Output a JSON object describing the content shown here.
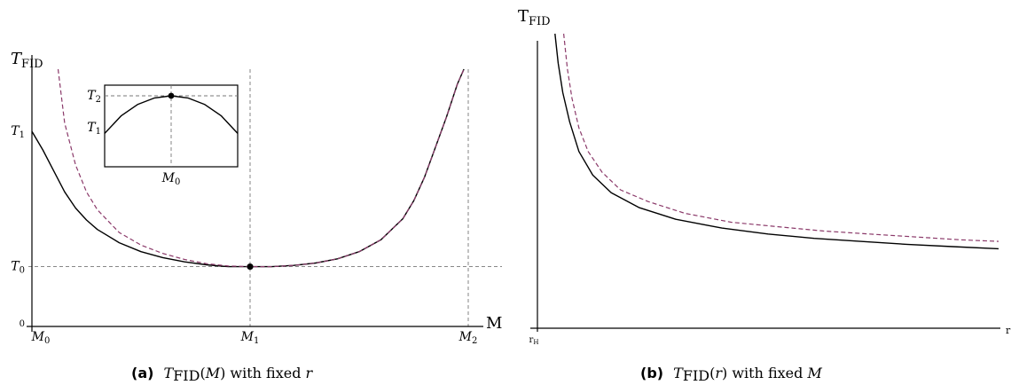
{
  "chart_data": [
    {
      "type": "line",
      "title": "",
      "caption_tag": "(a)",
      "caption_text": "T_FID(M) with fixed r",
      "xlabel": "M",
      "ylabel_main": "T",
      "ylabel_sub": "FID",
      "xticks": [
        {
          "label": "M",
          "sub": "0",
          "value": 0
        },
        {
          "label": "M",
          "sub": "1",
          "value": 1
        },
        {
          "label": "M",
          "sub": "2",
          "value": 2
        }
      ],
      "yticks": [
        {
          "label": "0",
          "sub": "",
          "value": 0
        },
        {
          "label": "T",
          "sub": "0",
          "value": 1
        },
        {
          "label": "T",
          "sub": "1",
          "value": 3.26
        }
      ],
      "xlim": [
        0,
        2
      ],
      "ylim": [
        0,
        4.3
      ],
      "grid": false,
      "reference_lines": {
        "vertical": [
          0,
          1,
          2
        ],
        "horizontal": [
          1
        ]
      },
      "marked_point": {
        "x": 1,
        "y": 1
      },
      "series": [
        {
          "style": "solid",
          "color": "#000000",
          "x": [
            0,
            0.05,
            0.1,
            0.15,
            0.2,
            0.25,
            0.3,
            0.4,
            0.5,
            0.6,
            0.7,
            0.8,
            0.9,
            1.0,
            1.1,
            1.2,
            1.3,
            1.4,
            1.5,
            1.6,
            1.7,
            1.75,
            1.8,
            1.85,
            1.9,
            1.95,
            1.98
          ],
          "y": [
            3.26,
            2.95,
            2.6,
            2.25,
            1.98,
            1.78,
            1.62,
            1.4,
            1.25,
            1.15,
            1.08,
            1.03,
            1.0,
            1.0,
            1.0,
            1.02,
            1.06,
            1.13,
            1.25,
            1.45,
            1.8,
            2.1,
            2.5,
            3.0,
            3.5,
            4.05,
            4.3
          ]
        },
        {
          "style": "dashed",
          "color": "#8b3a6a",
          "x": [
            0.12,
            0.15,
            0.2,
            0.25,
            0.3,
            0.4,
            0.5,
            0.6,
            0.7,
            0.8,
            0.9,
            1.0,
            1.1,
            1.2,
            1.3,
            1.4,
            1.5,
            1.6,
            1.7,
            1.75,
            1.8,
            1.85,
            1.9,
            1.95,
            1.98
          ],
          "y": [
            4.3,
            3.4,
            2.7,
            2.25,
            1.95,
            1.57,
            1.36,
            1.22,
            1.12,
            1.05,
            1.01,
            1.0,
            1.0,
            1.02,
            1.06,
            1.13,
            1.25,
            1.45,
            1.8,
            2.1,
            2.5,
            3.0,
            3.5,
            4.05,
            4.3
          ]
        }
      ],
      "inset": {
        "xticks": [
          {
            "label": "M",
            "sub": "0",
            "value": 0
          }
        ],
        "yticks": [
          {
            "label": "T",
            "sub": "1",
            "value": 0.55
          },
          {
            "label": "T",
            "sub": "2",
            "value": 1
          }
        ],
        "xlim": [
          -1,
          1
        ],
        "ylim": [
          0,
          1.15
        ],
        "marked_point": {
          "x": 0,
          "y": 1
        },
        "series": [
          {
            "style": "solid",
            "color": "#000000",
            "x": [
              -1,
              -0.75,
              -0.5,
              -0.25,
              0,
              0.25,
              0.5,
              0.75,
              1
            ],
            "y": [
              0.47,
              0.72,
              0.88,
              0.97,
              1,
              0.97,
              0.88,
              0.72,
              0.47
            ]
          }
        ]
      }
    },
    {
      "type": "line",
      "title": "",
      "caption_tag": "(b)",
      "caption_text": "T_FID(r) with fixed M",
      "xlabel": "r",
      "ylabel_main": "T",
      "ylabel_sub": "FID",
      "xticks": [
        {
          "label": "r",
          "sub": "H",
          "value": 0
        }
      ],
      "yticks": [],
      "xlim": [
        0,
        1
      ],
      "ylim": [
        0,
        1
      ],
      "grid": false,
      "series": [
        {
          "style": "solid",
          "color": "#000000",
          "x": [
            0.038,
            0.045,
            0.055,
            0.07,
            0.09,
            0.12,
            0.16,
            0.22,
            0.3,
            0.4,
            0.5,
            0.6,
            0.7,
            0.8,
            0.9,
            1.0
          ],
          "y": [
            1.0,
            0.9,
            0.8,
            0.7,
            0.6,
            0.52,
            0.46,
            0.41,
            0.37,
            0.34,
            0.32,
            0.305,
            0.295,
            0.285,
            0.277,
            0.27
          ]
        },
        {
          "style": "dashed",
          "color": "#8b3a6a",
          "x": [
            0.057,
            0.065,
            0.075,
            0.09,
            0.11,
            0.14,
            0.18,
            0.24,
            0.32,
            0.42,
            0.52,
            0.62,
            0.72,
            0.82,
            0.92,
            1.0
          ],
          "y": [
            1.0,
            0.88,
            0.78,
            0.68,
            0.6,
            0.53,
            0.47,
            0.43,
            0.39,
            0.36,
            0.345,
            0.33,
            0.32,
            0.31,
            0.3,
            0.295
          ]
        }
      ]
    }
  ]
}
